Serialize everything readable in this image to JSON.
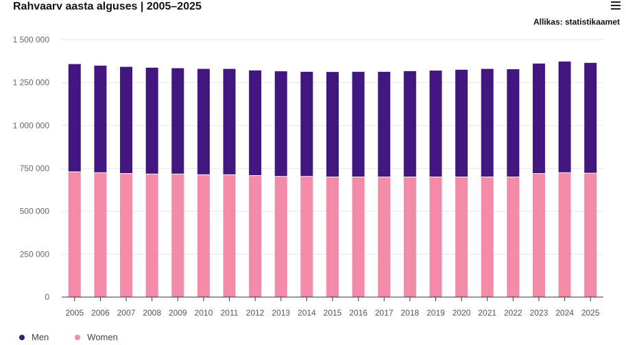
{
  "title": "Rahvaarv aasta alguses | 2005–2025",
  "source": "Allikas: statistikaamet",
  "menu_icon": "hamburger-menu-icon",
  "colors": {
    "men": "#41177f",
    "women": "#f28aa8",
    "grid": "#e6e6e6",
    "axis": "#333333"
  },
  "legend": [
    {
      "label": "Men",
      "color": "#41177f"
    },
    {
      "label": "Women",
      "color": "#f28aa8"
    }
  ],
  "chart_data": {
    "type": "bar",
    "stacked": true,
    "categories": [
      "2005",
      "2006",
      "2007",
      "2008",
      "2009",
      "2010",
      "2011",
      "2012",
      "2013",
      "2014",
      "2015",
      "2016",
      "2017",
      "2018",
      "2019",
      "2020",
      "2021",
      "2022",
      "2023",
      "2024",
      "2025"
    ],
    "series": [
      {
        "name": "Women",
        "values": [
          730000,
          725000,
          720000,
          717000,
          717000,
          713000,
          713000,
          708000,
          703000,
          703000,
          700000,
          700000,
          700000,
          700000,
          700000,
          700000,
          700000,
          700000,
          720000,
          725000,
          722000
        ]
      },
      {
        "name": "Men",
        "values": [
          628000,
          624000,
          622000,
          620000,
          617000,
          617000,
          617000,
          613000,
          613000,
          610000,
          612000,
          613000,
          613000,
          617000,
          620000,
          625000,
          630000,
          628000,
          641000,
          648000,
          643000
        ]
      }
    ],
    "ylim": [
      0,
      1500000
    ],
    "yticks": [
      {
        "value": 0,
        "label": "0"
      },
      {
        "value": 250000,
        "label": "250 000"
      },
      {
        "value": 500000,
        "label": "500 000"
      },
      {
        "value": 750000,
        "label": "750 000"
      },
      {
        "value": 1000000,
        "label": "1 000 000"
      },
      {
        "value": 1250000,
        "label": "1 250 000"
      },
      {
        "value": 1500000,
        "label": "1 500 000"
      }
    ],
    "grid": true,
    "legend_position": "bottom-left"
  }
}
